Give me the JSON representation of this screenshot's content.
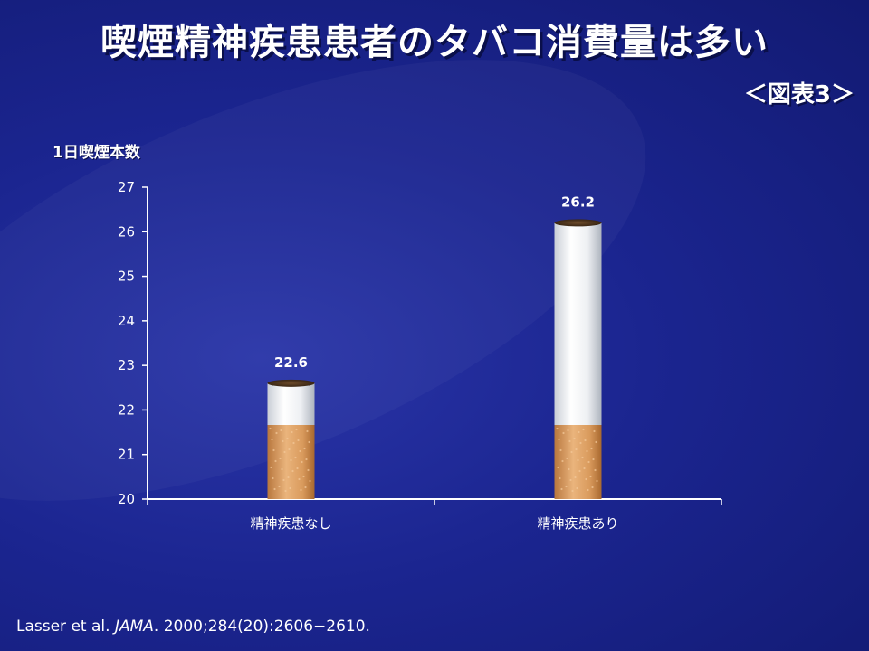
{
  "slide": {
    "title": "喫煙精神疾患患者のタバコ消費量は多い",
    "figure_label": "＜図表3＞",
    "citation_authors": "Lasser et al. ",
    "citation_journal": "JAMA",
    "citation_rest": ". 2000;284(20):2606−2610."
  },
  "colors": {
    "background": "#1b2590",
    "text": "#ffffff",
    "filter": "#d99a5c",
    "paper": "#f4f6f8"
  },
  "chart_data": {
    "type": "bar",
    "title": "",
    "ylabel": "1日喫煙本数",
    "xlabel": "",
    "categories": [
      "精神疾患なし",
      "精神疾患あり"
    ],
    "values": [
      22.6,
      26.2
    ],
    "value_labels": [
      "22.6",
      "26.2"
    ],
    "ylim": [
      20,
      27
    ],
    "yticks": [
      20,
      21,
      22,
      23,
      24,
      25,
      26,
      27
    ],
    "bar_style": "cigarette",
    "grid": false,
    "legend": "none"
  }
}
